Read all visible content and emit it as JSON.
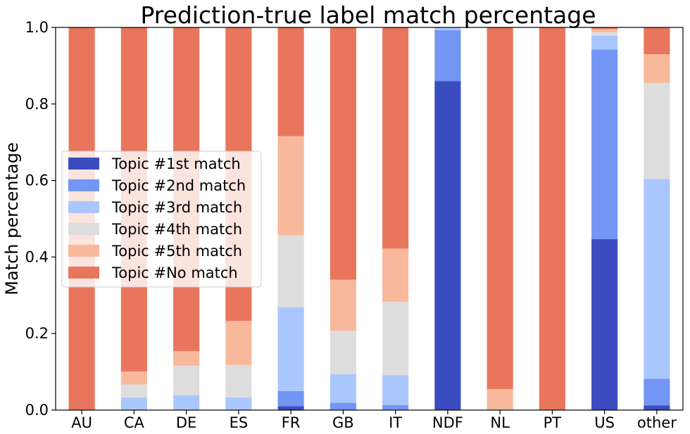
{
  "chart_data": {
    "type": "bar",
    "stacked": true,
    "title": "Prediction-true label match percentage",
    "xlabel": "",
    "ylabel": "Match percentage",
    "ylim": [
      0,
      1.0
    ],
    "yticks": [
      "0.0",
      "0.2",
      "0.4",
      "0.6",
      "0.8",
      "1.0"
    ],
    "categories": [
      "AU",
      "CA",
      "DE",
      "ES",
      "FR",
      "GB",
      "IT",
      "NDF",
      "NL",
      "PT",
      "US",
      "other"
    ],
    "legend_position": "center-left",
    "series": [
      {
        "name": "Topic #1st match",
        "color": "#3b4cc0",
        "values": [
          0,
          0,
          0,
          0,
          0.01,
          0,
          0,
          0.86,
          0,
          0,
          0.447,
          0.012
        ]
      },
      {
        "name": "Topic #2nd match",
        "color": "#7396f5",
        "values": [
          0,
          0,
          0,
          0,
          0.04,
          0.019,
          0.013,
          0.133,
          0,
          0,
          0.495,
          0.07
        ]
      },
      {
        "name": "Topic #3rd match",
        "color": "#aac7fd",
        "values": [
          0,
          0.033,
          0.039,
          0.033,
          0.219,
          0.075,
          0.078,
          0.007,
          0,
          0,
          0.036,
          0.522
        ]
      },
      {
        "name": "Topic #4th match",
        "color": "#dddddd",
        "values": [
          0,
          0.034,
          0.077,
          0.085,
          0.188,
          0.113,
          0.192,
          0,
          0,
          0,
          0.01,
          0.251
        ]
      },
      {
        "name": "Topic #5th match",
        "color": "#f7b89c",
        "values": [
          0,
          0.034,
          0.038,
          0.115,
          0.259,
          0.134,
          0.139,
          0,
          0.055,
          0,
          0.008,
          0.075
        ]
      },
      {
        "name": "Topic #No match",
        "color": "#e8765c",
        "values": [
          1.0,
          0.899,
          0.846,
          0.767,
          0.284,
          0.659,
          0.578,
          0,
          0.945,
          1.0,
          0.004,
          0.07
        ]
      }
    ]
  }
}
